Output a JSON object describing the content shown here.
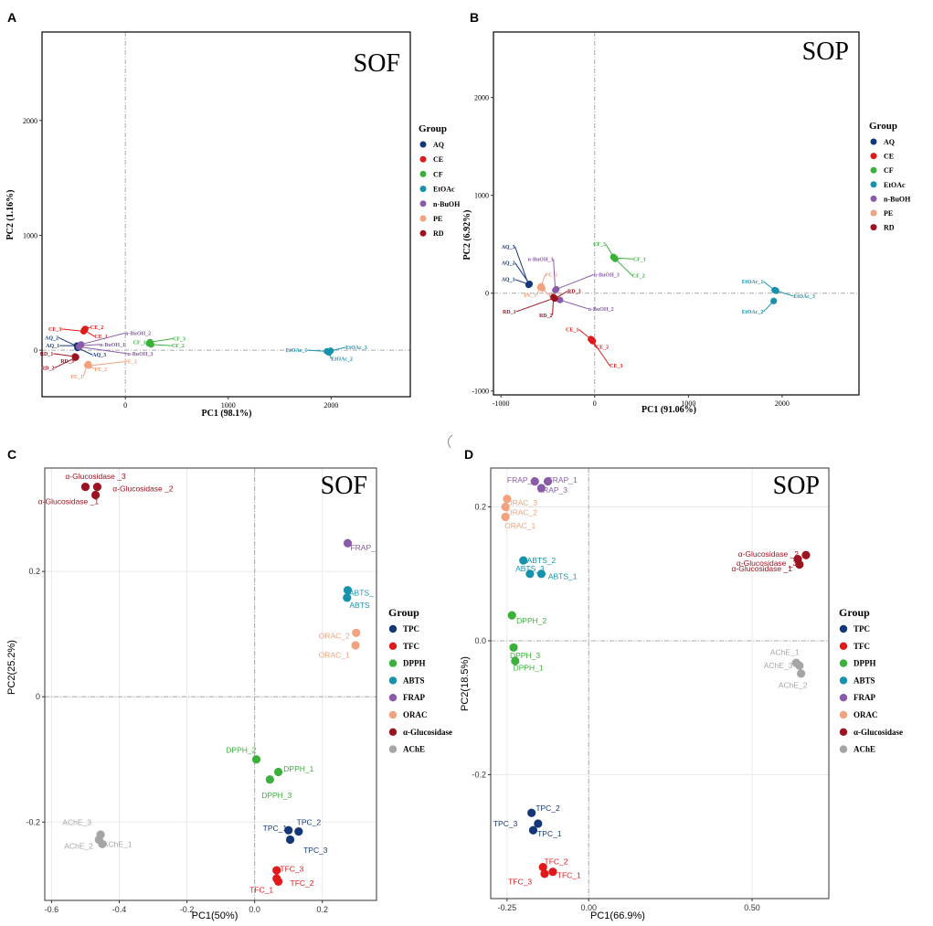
{
  "panels": [
    "A",
    "B",
    "C",
    "D"
  ],
  "chart_data": [
    {
      "id": "A",
      "type": "scatter",
      "title": "SOF",
      "xlabel": "PC1 (98.1%)",
      "ylabel": "PC2 (1.16%)",
      "xlim": [
        -810,
        2770
      ],
      "ylim": [
        -405,
        2770
      ],
      "xticks": [
        0,
        1000,
        2000
      ],
      "yticks": [
        0,
        1000,
        2000
      ],
      "legend_title": "Group",
      "legend": [
        {
          "name": "AQ",
          "color": "#14377a"
        },
        {
          "name": "CE",
          "color": "#e01a1a"
        },
        {
          "name": "CF",
          "color": "#3bb03b"
        },
        {
          "name": "EtOAc",
          "color": "#1792ad"
        },
        {
          "name": "n-BuOH",
          "color": "#8a5ba8"
        },
        {
          "name": "PE",
          "color": "#f2a27e"
        },
        {
          "name": "RD",
          "color": "#9c1420"
        }
      ],
      "points": [
        {
          "label": "AQ_1",
          "group": "AQ",
          "x": -470,
          "y": 40,
          "lx": -640,
          "ly": 40
        },
        {
          "label": "AQ_2",
          "group": "AQ",
          "x": -460,
          "y": 30,
          "lx": -650,
          "ly": 110
        },
        {
          "label": "AQ_3",
          "group": "AQ",
          "x": -465,
          "y": 20,
          "lx": -320,
          "ly": -40
        },
        {
          "label": "CE_1",
          "group": "CE",
          "x": -400,
          "y": 175,
          "lx": -300,
          "ly": 120
        },
        {
          "label": "CE_2",
          "group": "CE",
          "x": -390,
          "y": 185,
          "lx": -340,
          "ly": 200
        },
        {
          "label": "CE_3",
          "group": "CE",
          "x": -405,
          "y": 165,
          "lx": -620,
          "ly": 185
        },
        {
          "label": "CF_1",
          "group": "CF",
          "x": 230,
          "y": 60,
          "lx": 200,
          "ly": 70
        },
        {
          "label": "CF_2",
          "group": "CF",
          "x": 250,
          "y": 50,
          "lx": 450,
          "ly": 40
        },
        {
          "label": "CF_3",
          "group": "CF",
          "x": 240,
          "y": 70,
          "lx": 460,
          "ly": 100
        },
        {
          "label": "EtOAc_1",
          "group": "EtOAc",
          "x": 1960,
          "y": -10,
          "lx": 1770,
          "ly": 0
        },
        {
          "label": "EtOAc_2",
          "group": "EtOAc",
          "x": 1980,
          "y": -20,
          "lx": 2000,
          "ly": -75
        },
        {
          "label": "EtOAc_3",
          "group": "EtOAc",
          "x": 1995,
          "y": -5,
          "lx": 2140,
          "ly": 25
        },
        {
          "label": "n-BuOH_1",
          "group": "n-BuOH",
          "x": -440,
          "y": 40,
          "lx": -250,
          "ly": 50
        },
        {
          "label": "n-BuOH_2",
          "group": "n-BuOH",
          "x": -430,
          "y": 50,
          "lx": 0,
          "ly": 150
        },
        {
          "label": "n-BuOH_3",
          "group": "n-BuOH",
          "x": -450,
          "y": 30,
          "lx": 20,
          "ly": -30
        },
        {
          "label": "PE_1",
          "group": "PE",
          "x": -370,
          "y": -130,
          "lx": -410,
          "ly": -230
        },
        {
          "label": "PE_2",
          "group": "PE",
          "x": -360,
          "y": -120,
          "lx": -300,
          "ly": -165
        },
        {
          "label": "PE_3",
          "group": "PE",
          "x": -355,
          "y": -135,
          "lx": -10,
          "ly": -100
        },
        {
          "label": "RD_1",
          "group": "RD",
          "x": -490,
          "y": -55,
          "lx": -700,
          "ly": -30
        },
        {
          "label": "RD_2",
          "group": "RD",
          "x": -485,
          "y": -65,
          "lx": -690,
          "ly": -155
        },
        {
          "label": "RD_3",
          "group": "RD",
          "x": -480,
          "y": -60,
          "lx": -500,
          "ly": -95
        }
      ]
    },
    {
      "id": "B",
      "type": "scatter",
      "title": "SOP",
      "xlabel": "PC1 (91.06%)",
      "ylabel": "PC2 (6.92%)",
      "xlim": [
        -1080,
        2820
      ],
      "ylim": [
        -1040,
        2670
      ],
      "xticks": [
        -1000,
        0,
        1000,
        2000
      ],
      "yticks": [
        -1000,
        0,
        1000,
        2000
      ],
      "legend_title": "Group",
      "legend": [
        {
          "name": "AQ",
          "color": "#14377a"
        },
        {
          "name": "CE",
          "color": "#e01a1a"
        },
        {
          "name": "CF",
          "color": "#3bb03b"
        },
        {
          "name": "EtOAc",
          "color": "#1792ad"
        },
        {
          "name": "n-BuOH",
          "color": "#8a5ba8"
        },
        {
          "name": "PE",
          "color": "#f2a27e"
        },
        {
          "name": "RD",
          "color": "#9c1420"
        }
      ],
      "points": [
        {
          "label": "AQ_1",
          "group": "AQ",
          "x": -700,
          "y": 90,
          "lx": -850,
          "ly": 140
        },
        {
          "label": "AQ_2",
          "group": "AQ",
          "x": -695,
          "y": 95,
          "lx": -850,
          "ly": 310
        },
        {
          "label": "AQ_3",
          "group": "AQ",
          "x": -705,
          "y": 85,
          "lx": -850,
          "ly": 475
        },
        {
          "label": "CE_1",
          "group": "CE",
          "x": -40,
          "y": -470,
          "lx": -170,
          "ly": -370
        },
        {
          "label": "CE_2",
          "group": "CE",
          "x": -30,
          "y": -480,
          "lx": 10,
          "ly": -550
        },
        {
          "label": "CE_3",
          "group": "CE",
          "x": -20,
          "y": -490,
          "lx": 160,
          "ly": -740
        },
        {
          "label": "CF_1",
          "group": "CF",
          "x": 210,
          "y": 360,
          "lx": 410,
          "ly": 350
        },
        {
          "label": "CF_2",
          "group": "CF",
          "x": 220,
          "y": 350,
          "lx": 400,
          "ly": 180
        },
        {
          "label": "CF_3",
          "group": "CF",
          "x": 200,
          "y": 370,
          "lx": 120,
          "ly": 500
        },
        {
          "label": "EtOAc_1",
          "group": "EtOAc",
          "x": 1920,
          "y": 30,
          "lx": 1800,
          "ly": 120
        },
        {
          "label": "EtOAc_2",
          "group": "EtOAc",
          "x": 1910,
          "y": -80,
          "lx": 1800,
          "ly": -190
        },
        {
          "label": "EtOAc_3",
          "group": "EtOAc",
          "x": 1935,
          "y": 25,
          "lx": 2120,
          "ly": -30
        },
        {
          "label": "n-BuOH_1",
          "group": "n-BuOH",
          "x": -420,
          "y": 30,
          "lx": -440,
          "ly": 350
        },
        {
          "label": "n-BuOH_2",
          "group": "n-BuOH",
          "x": -370,
          "y": -70,
          "lx": -70,
          "ly": -160
        },
        {
          "label": "n-BuOH_3",
          "group": "n-BuOH",
          "x": -410,
          "y": 40,
          "lx": -10,
          "ly": 190
        },
        {
          "label": "PE_1",
          "group": "PE",
          "x": -580,
          "y": 60,
          "lx": -620,
          "ly": -20
        },
        {
          "label": "PE_2",
          "group": "PE",
          "x": -560,
          "y": 50,
          "lx": -490,
          "ly": -20
        },
        {
          "label": "PE_3",
          "group": "PE",
          "x": -570,
          "y": 70,
          "lx": -530,
          "ly": 190
        },
        {
          "label": "RD_1",
          "group": "RD",
          "x": -430,
          "y": -50,
          "lx": -840,
          "ly": -190
        },
        {
          "label": "RD_2",
          "group": "RD",
          "x": -440,
          "y": -40,
          "lx": -450,
          "ly": -225
        },
        {
          "label": "RD_3",
          "group": "RD",
          "x": -425,
          "y": -55,
          "lx": -290,
          "ly": 20
        }
      ]
    },
    {
      "id": "C",
      "type": "scatter",
      "title": "SOF",
      "xlabel": "PC1(50%)",
      "ylabel": "PC2(25.2%)",
      "xlim": [
        -0.62,
        0.36
      ],
      "ylim": [
        -0.325,
        0.365
      ],
      "xticks": [
        -0.6,
        -0.4,
        -0.2,
        0.0,
        0.2
      ],
      "xtick_labels": [
        "-0.6",
        "-0.4",
        "-0.2",
        "0.0",
        "0.2"
      ],
      "yticks": [
        -0.2,
        0.0,
        0.2
      ],
      "ytick_labels": [
        "-0.2",
        "0",
        "0.2"
      ],
      "legend_title": "Group",
      "legend": [
        {
          "name": "TPC",
          "color": "#14377a"
        },
        {
          "name": "TFC",
          "color": "#e01a1a"
        },
        {
          "name": "DPPH",
          "color": "#3bb03b"
        },
        {
          "name": "ABTS",
          "color": "#1792ad"
        },
        {
          "name": "FRAP",
          "color": "#8a5ba8"
        },
        {
          "name": "ORAC",
          "color": "#f2a27e"
        },
        {
          "name": "α-Glucosidase",
          "color": "#9c1420"
        },
        {
          "name": "AChE",
          "color": "#a5a5a5"
        }
      ],
      "points": [
        {
          "label": "α-Glucosidase _3",
          "group": "α-Glucosidase",
          "x": -0.5,
          "y": 0.335,
          "lx": -0.47,
          "ly": 0.352
        },
        {
          "label": "α-Glucosidase _2",
          "group": "α-Glucosidase",
          "x": -0.465,
          "y": 0.335,
          "lx": -0.33,
          "ly": 0.332
        },
        {
          "label": "α-Glucosidase _1",
          "group": "α-Glucosidase",
          "x": -0.47,
          "y": 0.322,
          "lx": -0.55,
          "ly": 0.312
        },
        {
          "label": "FRAP_",
          "group": "FRAP",
          "x": 0.275,
          "y": 0.245,
          "lx": 0.32,
          "ly": 0.238
        },
        {
          "label": "ABTS_",
          "group": "ABTS",
          "x": 0.275,
          "y": 0.17,
          "lx": 0.315,
          "ly": 0.166
        },
        {
          "label": "ABTS",
          "group": "ABTS",
          "x": 0.273,
          "y": 0.158,
          "lx": 0.31,
          "ly": 0.146
        },
        {
          "label": "ORAC_2",
          "group": "ORAC",
          "x": 0.3,
          "y": 0.102,
          "lx": 0.235,
          "ly": 0.097
        },
        {
          "label": "ORAC_1",
          "group": "ORAC",
          "x": 0.298,
          "y": 0.082,
          "lx": 0.235,
          "ly": 0.067
        },
        {
          "label": "DPPH_2",
          "group": "DPPH",
          "x": 0.005,
          "y": -0.1,
          "lx": -0.04,
          "ly": -0.085
        },
        {
          "label": "DPPH_1",
          "group": "DPPH",
          "x": 0.07,
          "y": -0.12,
          "lx": 0.13,
          "ly": -0.115
        },
        {
          "label": "DPPH_3",
          "group": "DPPH",
          "x": 0.045,
          "y": -0.132,
          "lx": 0.065,
          "ly": -0.157
        },
        {
          "label": "TPC_2",
          "group": "TPC",
          "x": 0.13,
          "y": -0.215,
          "lx": 0.16,
          "ly": -0.2
        },
        {
          "label": "TPC_1",
          "group": "TPC",
          "x": 0.1,
          "y": -0.213,
          "lx": 0.06,
          "ly": -0.21
        },
        {
          "label": "TPC_3",
          "group": "TPC",
          "x": 0.105,
          "y": -0.228,
          "lx": 0.18,
          "ly": -0.245
        },
        {
          "label": "TFC_3",
          "group": "TFC",
          "x": 0.065,
          "y": -0.277,
          "lx": 0.11,
          "ly": -0.275
        },
        {
          "label": "TFC_2",
          "group": "TFC",
          "x": 0.065,
          "y": -0.29,
          "lx": 0.14,
          "ly": -0.297
        },
        {
          "label": "TFC_1",
          "group": "TFC",
          "x": 0.07,
          "y": -0.295,
          "lx": 0.02,
          "ly": -0.308
        },
        {
          "label": "AChE_3",
          "group": "AChE",
          "x": -0.455,
          "y": -0.22,
          "lx": -0.525,
          "ly": -0.2
        },
        {
          "label": "AChE_2",
          "group": "AChE",
          "x": -0.46,
          "y": -0.228,
          "lx": -0.52,
          "ly": -0.238
        },
        {
          "label": "AChE_1",
          "group": "AChE",
          "x": -0.45,
          "y": -0.235,
          "lx": -0.405,
          "ly": -0.235
        }
      ]
    },
    {
      "id": "D",
      "type": "scatter",
      "title": "SOP",
      "xlabel": "PC1(66.9%)",
      "ylabel": "PC2(18.5%)",
      "xlim": [
        -0.3,
        0.735
      ],
      "ylim": [
        -0.385,
        0.258
      ],
      "xticks": [
        -0.25,
        0.0,
        0.5
      ],
      "xtick_labels": [
        "-0.25",
        "0.00",
        "0.50"
      ],
      "yticks": [
        -0.2,
        0.0,
        0.2
      ],
      "ytick_labels": [
        "-0.2",
        "0.0",
        "0.2"
      ],
      "legend_title": "Group",
      "legend": [
        {
          "name": "TPC",
          "color": "#14377a"
        },
        {
          "name": "TFC",
          "color": "#e01a1a"
        },
        {
          "name": "DPPH",
          "color": "#3bb03b"
        },
        {
          "name": "ABTS",
          "color": "#1792ad"
        },
        {
          "name": "FRAP",
          "color": "#8a5ba8"
        },
        {
          "name": "ORAC",
          "color": "#f2a27e"
        },
        {
          "name": "α-Glucosidase",
          "color": "#9c1420"
        },
        {
          "name": "AChE",
          "color": "#a5a5a5"
        }
      ],
      "points": [
        {
          "label": "FRAP_2",
          "group": "FRAP",
          "x": -0.165,
          "y": 0.238,
          "lx": -0.205,
          "ly": 0.24
        },
        {
          "label": "FRAP_1",
          "group": "FRAP",
          "x": -0.125,
          "y": 0.238,
          "lx": -0.08,
          "ly": 0.24
        },
        {
          "label": "FRAP_3",
          "group": "FRAP",
          "x": -0.145,
          "y": 0.228,
          "lx": -0.11,
          "ly": 0.225
        },
        {
          "label": "ORAC_3",
          "group": "ORAC",
          "x": -0.25,
          "y": 0.212,
          "lx": -0.205,
          "ly": 0.206
        },
        {
          "label": "ORAC_2",
          "group": "ORAC",
          "x": -0.255,
          "y": 0.2,
          "lx": -0.205,
          "ly": 0.192
        },
        {
          "label": "ORAC_1",
          "group": "ORAC",
          "x": -0.255,
          "y": 0.185,
          "lx": -0.21,
          "ly": 0.172
        },
        {
          "label": "ABTS_2",
          "group": "ABTS",
          "x": -0.2,
          "y": 0.12,
          "lx": -0.145,
          "ly": 0.12
        },
        {
          "label": "ABTS_3",
          "group": "ABTS",
          "x": -0.18,
          "y": 0.1,
          "lx": -0.18,
          "ly": 0.108
        },
        {
          "label": "ABTS_1",
          "group": "ABTS",
          "x": -0.145,
          "y": 0.1,
          "lx": -0.08,
          "ly": 0.096
        },
        {
          "label": "DPPH_2",
          "group": "DPPH",
          "x": -0.235,
          "y": 0.038,
          "lx": -0.175,
          "ly": 0.03
        },
        {
          "label": "DPPH_3",
          "group": "DPPH",
          "x": -0.23,
          "y": -0.01,
          "lx": -0.195,
          "ly": -0.022
        },
        {
          "label": "DPPH_1",
          "group": "DPPH",
          "x": -0.225,
          "y": -0.03,
          "lx": -0.185,
          "ly": -0.04
        },
        {
          "label": "α-Glucosidase _2",
          "group": "α-Glucosidase",
          "x": 0.665,
          "y": 0.128,
          "lx": 0.55,
          "ly": 0.13
        },
        {
          "label": "α-Glucosidase _3",
          "group": "α-Glucosidase",
          "x": 0.64,
          "y": 0.122,
          "lx": 0.545,
          "ly": 0.116
        },
        {
          "label": "α-Glucosidase _1",
          "group": "α-Glucosidase",
          "x": 0.645,
          "y": 0.114,
          "lx": 0.53,
          "ly": 0.108
        },
        {
          "label": "AChE_1",
          "group": "AChE",
          "x": 0.635,
          "y": -0.033,
          "lx": 0.6,
          "ly": -0.017
        },
        {
          "label": "AChE_3",
          "group": "AChE",
          "x": 0.645,
          "y": -0.037,
          "lx": 0.58,
          "ly": -0.037
        },
        {
          "label": "AChE_2",
          "group": "AChE",
          "x": 0.65,
          "y": -0.049,
          "lx": 0.625,
          "ly": -0.066
        },
        {
          "label": "TPC_2",
          "group": "TPC",
          "x": -0.175,
          "y": -0.257,
          "lx": -0.125,
          "ly": -0.25
        },
        {
          "label": "TPC_3",
          "group": "TPC",
          "x": -0.155,
          "y": -0.273,
          "lx": -0.255,
          "ly": -0.273
        },
        {
          "label": "TPC_1",
          "group": "TPC",
          "x": -0.17,
          "y": -0.283,
          "lx": -0.12,
          "ly": -0.288
        },
        {
          "label": "TFC_2",
          "group": "TFC",
          "x": -0.14,
          "y": -0.338,
          "lx": -0.1,
          "ly": -0.33
        },
        {
          "label": "TFC_1",
          "group": "TFC",
          "x": -0.11,
          "y": -0.345,
          "lx": -0.06,
          "ly": -0.35
        },
        {
          "label": "TFC_3",
          "group": "TFC",
          "x": -0.135,
          "y": -0.348,
          "lx": -0.21,
          "ly": -0.36
        }
      ]
    }
  ]
}
